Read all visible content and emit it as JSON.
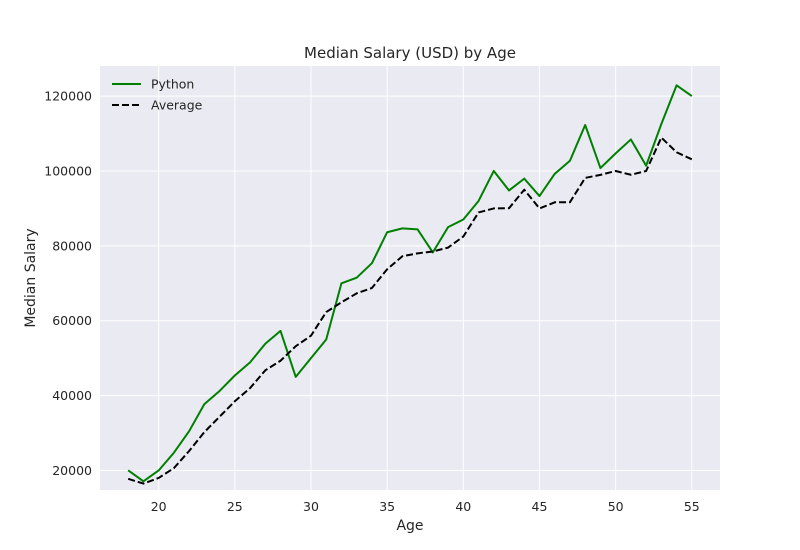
{
  "chart_data": {
    "type": "line",
    "title": "Median Salary (USD) by Age",
    "xlabel": "Age",
    "ylabel": "Median Salary",
    "xlim": [
      16.15,
      56.85
    ],
    "ylim": [
      14790,
      128040
    ],
    "xticks": [
      20,
      25,
      30,
      35,
      40,
      45,
      50,
      55
    ],
    "yticks": [
      20000,
      40000,
      60000,
      80000,
      100000,
      120000
    ],
    "grid": true,
    "legend_position": "top-left",
    "x": [
      18,
      19,
      20,
      21,
      22,
      23,
      24,
      25,
      26,
      27,
      28,
      29,
      30,
      31,
      32,
      33,
      34,
      35,
      36,
      37,
      38,
      39,
      40,
      41,
      42,
      43,
      44,
      45,
      46,
      47,
      48,
      49,
      50,
      51,
      52,
      53,
      54,
      55
    ],
    "series": [
      {
        "name": "Python",
        "color": "#008000",
        "dash": "solid",
        "values": [
          20046,
          17100,
          20000,
          24744,
          30500,
          37732,
          41247,
          45372,
          48876,
          53850,
          57287,
          45000,
          50000,
          55000,
          70000,
          71496,
          75370,
          83640,
          84666,
          84392,
          78254,
          85000,
          87038,
          91991,
          100000,
          94796,
          97962,
          93302,
          99240,
          102736,
          112285,
          100771,
          104708,
          108423,
          101407,
          112542,
          122870,
          120000
        ]
      },
      {
        "name": "Average",
        "color": "#000000",
        "dash": "dashed",
        "values": [
          17784,
          16500,
          18012,
          20628,
          25206,
          30252,
          34368,
          38496,
          42000,
          46752,
          49320,
          53200,
          56000,
          62316,
          64928,
          67317,
          68748,
          73752,
          77232,
          78000,
          78508,
          79536,
          82488,
          88935,
          90000,
          90056,
          95000,
          90000,
          91633,
          91660,
          98150,
          98964,
          100000,
          98988,
          100000,
          108923,
          105000,
          103117
        ]
      }
    ]
  }
}
